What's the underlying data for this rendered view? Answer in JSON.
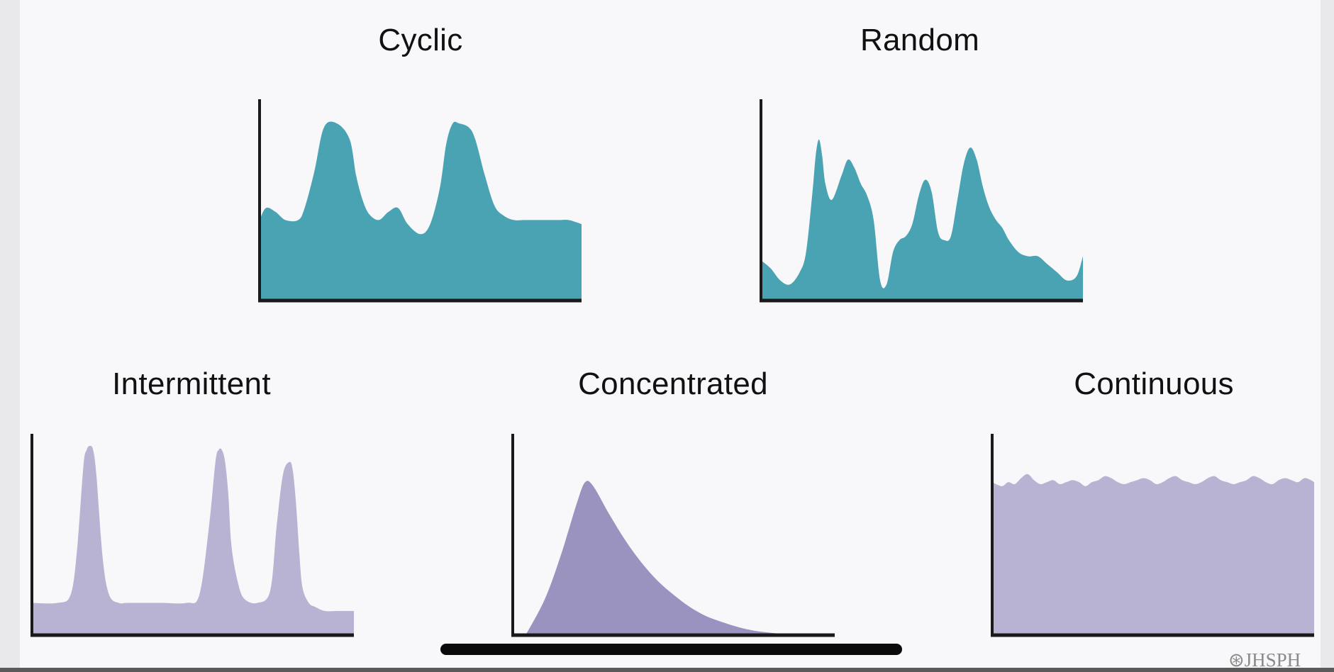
{
  "colors": {
    "teal": "#4aa3b3",
    "lavender": "#b8b3d3",
    "purple": "#9a93bf",
    "axis": "#1a1a1a"
  },
  "watermark": {
    "icon": "seal-icon",
    "text": "JHSPH"
  },
  "chart_data": [
    {
      "type": "area",
      "title": "Cyclic",
      "xlabel": "",
      "ylabel": "",
      "xlim": [
        0,
        100
      ],
      "ylim": [
        0,
        100
      ],
      "color": "teal",
      "x": [
        0,
        2,
        5,
        8,
        12,
        14,
        17,
        20,
        24,
        28,
        30,
        32,
        34,
        37,
        40,
        43,
        46,
        50,
        53,
        56,
        58,
        60,
        62,
        65,
        67,
        70,
        73,
        76,
        79,
        82,
        85,
        87,
        90,
        93,
        96,
        100
      ],
      "y": [
        40,
        46,
        44,
        40,
        40,
        46,
        64,
        86,
        88,
        80,
        62,
        50,
        43,
        40,
        44,
        46,
        38,
        33,
        38,
        56,
        78,
        88,
        88,
        86,
        80,
        62,
        47,
        42,
        40,
        40,
        40,
        40,
        40,
        40,
        40,
        38
      ]
    },
    {
      "type": "area",
      "title": "Random",
      "xlabel": "",
      "ylabel": "",
      "xlim": [
        0,
        100
      ],
      "ylim": [
        0,
        100
      ],
      "color": "teal",
      "x": [
        0,
        3,
        6,
        9,
        12,
        14,
        16,
        17,
        18,
        19,
        20,
        22,
        25,
        27,
        29,
        31,
        33,
        35,
        37,
        39,
        41,
        43,
        45,
        47,
        49,
        51,
        53,
        55,
        57,
        59,
        61,
        63,
        65,
        67,
        69,
        71,
        73,
        75,
        77,
        80,
        83,
        86,
        89,
        92,
        95,
        98,
        100
      ],
      "y": [
        20,
        16,
        10,
        8,
        14,
        24,
        54,
        72,
        80,
        72,
        58,
        50,
        62,
        70,
        66,
        58,
        52,
        40,
        10,
        8,
        24,
        30,
        32,
        38,
        52,
        60,
        54,
        34,
        30,
        32,
        50,
        68,
        76,
        70,
        56,
        46,
        40,
        36,
        30,
        24,
        22,
        22,
        18,
        14,
        10,
        12,
        22
      ]
    },
    {
      "type": "area",
      "title": "Intermittent",
      "xlabel": "",
      "ylabel": "",
      "xlim": [
        0,
        100
      ],
      "ylim": [
        0,
        100
      ],
      "color": "lavender",
      "x": [
        0,
        8,
        12,
        14,
        16,
        17,
        18,
        19,
        20,
        22,
        24,
        27,
        30,
        40,
        48,
        52,
        55,
        57,
        58,
        59,
        60,
        61,
        62,
        64,
        66,
        70,
        74,
        76,
        78,
        80,
        81,
        82,
        83,
        84,
        86,
        88,
        91,
        95,
        100
      ],
      "y": [
        16,
        16,
        20,
        42,
        84,
        92,
        94,
        92,
        80,
        38,
        20,
        16,
        16,
        16,
        16,
        20,
        54,
        86,
        92,
        92,
        86,
        70,
        44,
        26,
        18,
        16,
        22,
        54,
        80,
        86,
        82,
        66,
        42,
        24,
        16,
        14,
        12,
        12,
        12
      ]
    },
    {
      "type": "area",
      "title": "Concentrated",
      "xlabel": "",
      "ylabel": "",
      "xlim": [
        0,
        100
      ],
      "ylim": [
        0,
        100
      ],
      "color": "purple",
      "x": [
        4,
        10,
        15,
        20,
        22.5,
        25,
        30,
        35,
        40,
        45,
        50,
        55,
        60,
        65,
        70,
        75,
        80,
        85,
        90
      ],
      "y": [
        0,
        18,
        40,
        66,
        76,
        74,
        60,
        47,
        36,
        27,
        20,
        14,
        9.5,
        6.5,
        4,
        2.2,
        1.2,
        0.5,
        0
      ]
    },
    {
      "type": "area",
      "title": "Continuous",
      "xlabel": "",
      "ylabel": "",
      "xlim": [
        0,
        100
      ],
      "ylim": [
        0,
        100
      ],
      "color": "lavender",
      "x": [
        0,
        3,
        5,
        7,
        9,
        11,
        13,
        15,
        17,
        19,
        21,
        23,
        25,
        27,
        29,
        31,
        33,
        35,
        37,
        39,
        41,
        43,
        45,
        47,
        49,
        51,
        53,
        55,
        57,
        59,
        61,
        63,
        65,
        67,
        69,
        71,
        73,
        75,
        77,
        79,
        81,
        83,
        85,
        87,
        89,
        91,
        93,
        95,
        97,
        99,
        100
      ],
      "y": [
        76,
        74,
        76,
        75,
        78,
        80,
        77,
        75,
        76,
        77,
        75,
        76,
        77,
        76,
        74,
        76,
        77,
        79,
        78,
        76,
        75,
        76,
        77,
        78,
        77,
        75,
        76,
        78,
        79,
        77,
        76,
        75,
        76,
        78,
        79,
        77,
        76,
        75,
        76,
        77,
        79,
        78,
        76,
        75,
        77,
        78,
        77,
        76,
        78,
        77,
        76
      ]
    }
  ]
}
